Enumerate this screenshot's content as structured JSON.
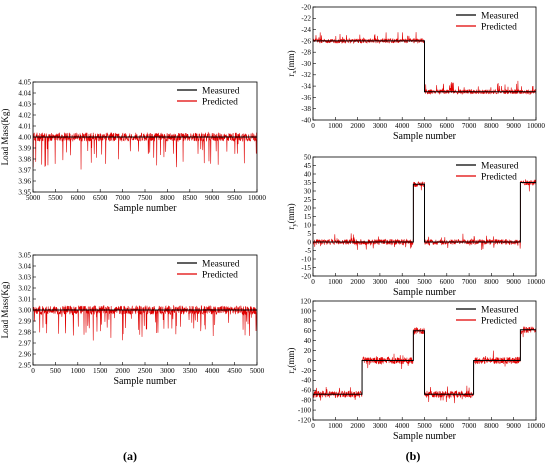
{
  "chart_data": [
    {
      "id": "a-top",
      "type": "line",
      "ylabel": "Load Mass(Kg)",
      "xlabel": "Sample number",
      "xlim": [
        5000,
        10000
      ],
      "ylim": [
        3.95,
        4.05
      ],
      "xticks": [
        5000,
        5500,
        6000,
        6500,
        7000,
        7500,
        8000,
        8500,
        9000,
        9500,
        10000
      ],
      "yticks": [
        3.95,
        3.96,
        3.97,
        3.98,
        3.99,
        4.0,
        4.01,
        4.02,
        4.03,
        4.04,
        4.05
      ],
      "ytick_decimals": 2,
      "legend_position": "top-right",
      "series": [
        {
          "name": "Measured",
          "color": "#000000",
          "segments": [
            {
              "x0": 5000,
              "x1": 10000,
              "y": 4.0
            }
          ]
        },
        {
          "name": "Predicted",
          "color": "#e00000",
          "noise": 0.004,
          "spike": 0.028,
          "spike_dir": "down"
        }
      ]
    },
    {
      "id": "a-bottom",
      "type": "line",
      "ylabel": "Load Mass(Kg)",
      "xlabel": "Sample number",
      "xlim": [
        0,
        5000
      ],
      "ylim": [
        2.95,
        3.05
      ],
      "xticks": [
        0,
        500,
        1000,
        1500,
        2000,
        2500,
        3000,
        3500,
        4000,
        4500,
        5000
      ],
      "yticks": [
        2.95,
        2.96,
        2.97,
        2.98,
        2.99,
        3.0,
        3.01,
        3.02,
        3.03,
        3.04,
        3.05
      ],
      "ytick_decimals": 2,
      "legend_position": "top-right",
      "series": [
        {
          "name": "Measured",
          "color": "#000000",
          "segments": [
            {
              "x0": 0,
              "x1": 5000,
              "y": 3.0
            }
          ]
        },
        {
          "name": "Predicted",
          "color": "#e00000",
          "noise": 0.004,
          "spike": 0.025,
          "spike_dir": "down"
        }
      ]
    },
    {
      "id": "b-top",
      "type": "line",
      "ylabel": "rx(mm)",
      "ylabel_main": "r",
      "ylabel_sub": "x",
      "ylabel_unit": "(mm)",
      "xlabel": "Sample number",
      "xlim": [
        0,
        10000
      ],
      "ylim": [
        -40,
        -20
      ],
      "xticks": [
        0,
        1000,
        2000,
        3000,
        4000,
        5000,
        6000,
        7000,
        8000,
        9000,
        10000
      ],
      "yticks": [
        -40,
        -38,
        -36,
        -34,
        -32,
        -30,
        -28,
        -26,
        -24,
        -22,
        -20
      ],
      "ytick_decimals": 0,
      "legend_position": "top-right",
      "series": [
        {
          "name": "Measured",
          "color": "#000000",
          "segments": [
            {
              "x0": 0,
              "x1": 5000,
              "y": -26
            },
            {
              "x0": 5000,
              "x1": 10000,
              "y": -35
            }
          ]
        },
        {
          "name": "Predicted",
          "color": "#e00000",
          "noise": 0.4,
          "spike": 1.8,
          "spike_dir": "up"
        }
      ]
    },
    {
      "id": "b-mid",
      "type": "line",
      "ylabel": "ry(mm)",
      "ylabel_main": "r",
      "ylabel_sub": "y",
      "ylabel_unit": "(mm)",
      "xlabel": "Sample number",
      "xlim": [
        0,
        10000
      ],
      "ylim": [
        -20,
        50
      ],
      "xticks": [
        0,
        1000,
        2000,
        3000,
        4000,
        5000,
        6000,
        7000,
        8000,
        9000,
        10000
      ],
      "yticks": [
        -20,
        -15,
        -10,
        -5,
        0,
        5,
        10,
        15,
        20,
        25,
        30,
        35,
        40,
        45,
        50
      ],
      "ytick_decimals": 0,
      "legend_position": "top-right",
      "series": [
        {
          "name": "Measured",
          "color": "#000000",
          "segments": [
            {
              "x0": 0,
              "x1": 4500,
              "y": 0
            },
            {
              "x0": 4500,
              "x1": 5000,
              "y": 34
            },
            {
              "x0": 5000,
              "x1": 9300,
              "y": 0
            },
            {
              "x0": 9300,
              "x1": 10000,
              "y": 35
            }
          ]
        },
        {
          "name": "Predicted",
          "color": "#e00000",
          "noise": 1.6,
          "spike": 4,
          "spike_dir": "both"
        }
      ]
    },
    {
      "id": "b-bottom",
      "type": "line",
      "ylabel": "rz(mm)",
      "ylabel_main": "r",
      "ylabel_sub": "z",
      "ylabel_unit": "(mm)",
      "xlabel": "Sample number",
      "xlim": [
        0,
        10000
      ],
      "ylim": [
        -120,
        120
      ],
      "xticks": [
        0,
        1000,
        2000,
        3000,
        4000,
        5000,
        6000,
        7000,
        8000,
        9000,
        10000
      ],
      "yticks": [
        -120,
        -100,
        -80,
        -60,
        -40,
        -20,
        0,
        20,
        40,
        60,
        80,
        100,
        120
      ],
      "ytick_decimals": 0,
      "legend_position": "top-right",
      "series": [
        {
          "name": "Measured",
          "color": "#000000",
          "segments": [
            {
              "x0": 0,
              "x1": 2200,
              "y": -68
            },
            {
              "x0": 2200,
              "x1": 4500,
              "y": 0
            },
            {
              "x0": 4500,
              "x1": 5000,
              "y": 60
            },
            {
              "x0": 5000,
              "x1": 7200,
              "y": -68
            },
            {
              "x0": 7200,
              "x1": 9300,
              "y": 0
            },
            {
              "x0": 9300,
              "x1": 10000,
              "y": 62
            }
          ]
        },
        {
          "name": "Predicted",
          "color": "#e00000",
          "noise": 7,
          "spike": 14,
          "spike_dir": "both"
        }
      ]
    }
  ],
  "panel_labels": {
    "a": "(a)",
    "b": "(b)"
  }
}
